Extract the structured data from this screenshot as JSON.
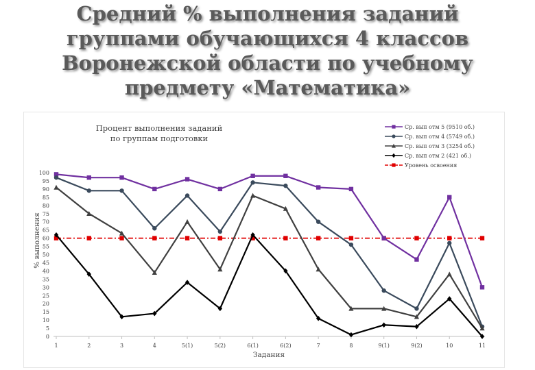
{
  "slide": {
    "title_lines": [
      "Средний % выполнения заданий",
      "группами обучающихся 4 классов",
      "Воронежской области по учебному",
      "предмету «Математика»"
    ]
  },
  "chart_data": {
    "type": "line",
    "title_lines": [
      "Процент выполнения заданий",
      "по группам подготовки"
    ],
    "xlabel": "Задания",
    "ylabel": "% выполнения",
    "ylim": [
      0,
      100
    ],
    "ytick_step": 5,
    "grid": false,
    "legend_position": "top-right",
    "categories": [
      "1",
      "2",
      "3",
      "4",
      "5(1)",
      "5(2)",
      "6(1)",
      "6(2)",
      "7",
      "8",
      "9(1)",
      "9(2)",
      "10",
      "11"
    ],
    "series": [
      {
        "name": "Ср. вып отм 5 (9510 об.)",
        "color": "#7030A0",
        "marker": "square",
        "dashed": false,
        "values": [
          99,
          97,
          97,
          90,
          96,
          90,
          98,
          98,
          91,
          90,
          60,
          47,
          85,
          30
        ]
      },
      {
        "name": "Ср. вып отм 4 (5749 об.)",
        "color": "#3A4A5C",
        "marker": "circle",
        "dashed": false,
        "values": [
          97,
          89,
          89,
          66,
          86,
          64,
          94,
          92,
          70,
          56,
          28,
          17,
          57,
          6
        ]
      },
      {
        "name": "Ср. вып отм 3 (3254 об.)",
        "color": "#404040",
        "marker": "triangle",
        "dashed": false,
        "values": [
          91,
          75,
          63,
          39,
          70,
          41,
          86,
          78,
          41,
          17,
          17,
          12,
          38,
          5
        ]
      },
      {
        "name": "Ср. вып отм 2 (421 об.)",
        "color": "#000000",
        "marker": "diamond",
        "dashed": false,
        "values": [
          62,
          38,
          12,
          14,
          33,
          17,
          62,
          40,
          11,
          1,
          7,
          6,
          23,
          0
        ]
      },
      {
        "name": "Уровень освоения",
        "color": "#E00000",
        "marker": "square",
        "dashed": true,
        "values": [
          60,
          60,
          60,
          60,
          60,
          60,
          60,
          60,
          60,
          60,
          60,
          60,
          60,
          60
        ]
      }
    ]
  }
}
